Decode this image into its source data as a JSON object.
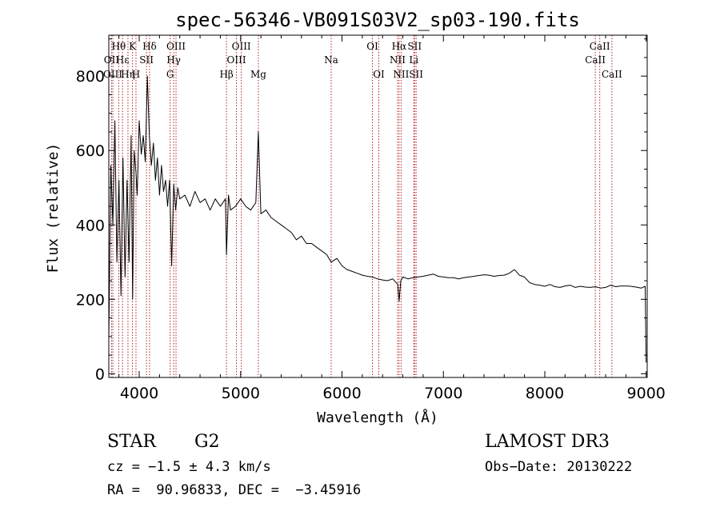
{
  "chart_data": {
    "type": "line",
    "title": "spec-56346-VB091S03V2_sp03-190.fits",
    "xlabel": "Wavelength (Å)",
    "ylabel": "Flux (relative)",
    "xlim": [
      3700,
      9010
    ],
    "ylim": [
      -10,
      910
    ],
    "xticks": [
      4000,
      5000,
      6000,
      7000,
      8000,
      9000
    ],
    "yticks": [
      0,
      200,
      400,
      600,
      800
    ],
    "grid": false,
    "series": [
      {
        "name": "flux",
        "x": [
          3700,
          3720,
          3740,
          3760,
          3780,
          3800,
          3820,
          3840,
          3860,
          3880,
          3900,
          3920,
          3935,
          3950,
          3968,
          3980,
          4000,
          4020,
          4040,
          4060,
          4080,
          4100,
          4120,
          4140,
          4160,
          4180,
          4200,
          4220,
          4240,
          4260,
          4280,
          4300,
          4320,
          4340,
          4360,
          4380,
          4400,
          4450,
          4500,
          4550,
          4600,
          4650,
          4700,
          4750,
          4800,
          4850,
          4861,
          4880,
          4900,
          4950,
          5000,
          5050,
          5100,
          5150,
          5175,
          5200,
          5250,
          5300,
          5350,
          5400,
          5450,
          5500,
          5550,
          5600,
          5650,
          5700,
          5750,
          5800,
          5850,
          5893,
          5950,
          6000,
          6050,
          6100,
          6150,
          6200,
          6250,
          6300,
          6350,
          6400,
          6450,
          6500,
          6550,
          6563,
          6580,
          6600,
          6650,
          6700,
          6750,
          6800,
          6850,
          6900,
          6950,
          7000,
          7050,
          7100,
          7150,
          7200,
          7250,
          7300,
          7350,
          7400,
          7450,
          7500,
          7550,
          7600,
          7650,
          7700,
          7750,
          7800,
          7850,
          7900,
          7950,
          8000,
          8050,
          8100,
          8150,
          8200,
          8250,
          8300,
          8350,
          8400,
          8450,
          8500,
          8550,
          8600,
          8650,
          8700,
          8750,
          8800,
          8850,
          8900,
          8950,
          8990,
          9000
        ],
        "values": [
          90,
          560,
          400,
          680,
          300,
          520,
          210,
          580,
          260,
          520,
          300,
          640,
          200,
          600,
          540,
          480,
          680,
          590,
          640,
          570,
          800,
          640,
          560,
          620,
          520,
          580,
          480,
          560,
          490,
          520,
          450,
          520,
          290,
          510,
          440,
          500,
          470,
          480,
          450,
          490,
          460,
          470,
          440,
          470,
          450,
          470,
          320,
          480,
          440,
          450,
          470,
          450,
          440,
          460,
          650,
          430,
          440,
          420,
          410,
          400,
          390,
          380,
          360,
          370,
          350,
          350,
          340,
          330,
          320,
          300,
          310,
          290,
          280,
          275,
          270,
          265,
          262,
          260,
          255,
          252,
          250,
          255,
          240,
          195,
          250,
          260,
          255,
          258,
          260,
          262,
          265,
          268,
          262,
          260,
          258,
          258,
          255,
          258,
          260,
          262,
          264,
          266,
          265,
          262,
          264,
          265,
          270,
          280,
          265,
          260,
          245,
          240,
          238,
          235,
          240,
          234,
          232,
          236,
          238,
          232,
          235,
          233,
          232,
          234,
          230,
          232,
          238,
          234,
          236,
          236,
          235,
          233,
          230,
          235,
          30
        ]
      }
    ],
    "spectral_lines": [
      {
        "label": "Hθ",
        "wavelength": 3798,
        "row": 1
      },
      {
        "label": "OII",
        "wavelength": 3727,
        "row": 2
      },
      {
        "label": "OIII",
        "wavelength": 3740,
        "row": 3
      },
      {
        "label": "Hε",
        "wavelength": 3835,
        "row": 2
      },
      {
        "label": "Hη",
        "wavelength": 3889,
        "row": 3
      },
      {
        "label": "K",
        "wavelength": 3934,
        "row": 1
      },
      {
        "label": "SII",
        "wavelength": 4072,
        "row": 2
      },
      {
        "label": "H",
        "wavelength": 3968,
        "row": 3
      },
      {
        "label": "Hδ",
        "wavelength": 4102,
        "row": 1
      },
      {
        "label": "OIII",
        "wavelength": 4363,
        "row": 1
      },
      {
        "label": "Hγ",
        "wavelength": 4340,
        "row": 2
      },
      {
        "label": "G",
        "wavelength": 4305,
        "row": 3
      },
      {
        "label": "Hβ",
        "wavelength": 4861,
        "row": 3
      },
      {
        "label": "OIII",
        "wavelength": 5007,
        "row": 1
      },
      {
        "label": "OIII",
        "wavelength": 4959,
        "row": 2
      },
      {
        "label": "Mg",
        "wavelength": 5175,
        "row": 3
      },
      {
        "label": "Na",
        "wavelength": 5893,
        "row": 2
      },
      {
        "label": "OI",
        "wavelength": 6300,
        "row": 1
      },
      {
        "label": "OI",
        "wavelength": 6363,
        "row": 3
      },
      {
        "label": "Hα",
        "wavelength": 6563,
        "row": 1
      },
      {
        "label": "NII",
        "wavelength": 6548,
        "row": 2
      },
      {
        "label": "NII",
        "wavelength": 6583,
        "row": 3
      },
      {
        "label": "SII",
        "wavelength": 6716,
        "row": 1
      },
      {
        "label": "Li",
        "wavelength": 6708,
        "row": 2
      },
      {
        "label": "SII",
        "wavelength": 6731,
        "row": 3
      },
      {
        "label": "CaII",
        "wavelength": 8542,
        "row": 1
      },
      {
        "label": "CaII",
        "wavelength": 8498,
        "row": 2
      },
      {
        "label": "CaII",
        "wavelength": 8662,
        "row": 3
      }
    ]
  },
  "info": {
    "object_class": "STAR",
    "subclass": "G2",
    "survey": "LAMOST DR3",
    "redshift": "cz = −1.5 ± 4.3 km/s",
    "obs_date": "Obs−Date: 20130222",
    "coords": "RA =  90.96833, DEC =  −3.45916"
  },
  "colors": {
    "axis": "#000000",
    "spectrum": "#000000",
    "line_marker": "#b22222"
  }
}
